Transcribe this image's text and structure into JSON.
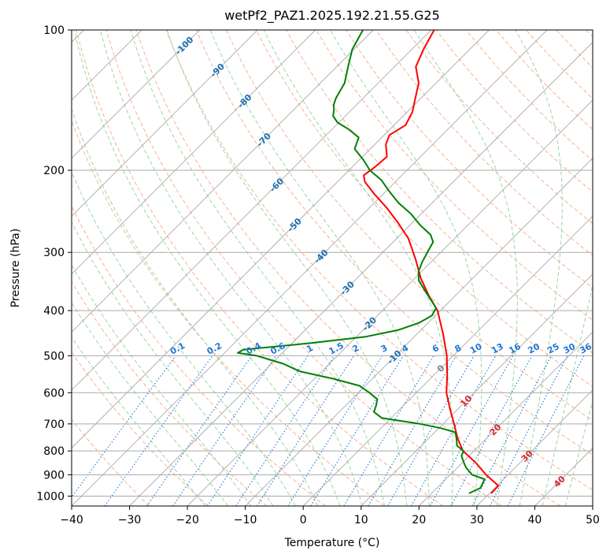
{
  "chart_data": {
    "type": "line",
    "title": "wetPf2_PAZ1.2025.192.21.55.G25",
    "xlabel": "Temperature (°C)",
    "ylabel": "Pressure (hPa)",
    "xlim": [
      -40,
      50
    ],
    "ylim": [
      1050,
      100
    ],
    "y_scale": "log",
    "skew": true,
    "grid": true,
    "x_ticks": [
      -40,
      -30,
      -20,
      -10,
      0,
      10,
      20,
      30,
      40,
      50
    ],
    "y_ticks": [
      100,
      200,
      300,
      400,
      500,
      600,
      700,
      800,
      900,
      1000
    ],
    "series": [
      {
        "color": "#ff0000",
        "points": [
          [
            985,
            30.3
          ],
          [
            950,
            30.2
          ],
          [
            900,
            26.2
          ],
          [
            850,
            22.5
          ],
          [
            800,
            18.1
          ],
          [
            750,
            14.9
          ],
          [
            700,
            11.9
          ],
          [
            650,
            8.6
          ],
          [
            600,
            5.2
          ],
          [
            550,
            2.3
          ],
          [
            500,
            -1.1
          ],
          [
            450,
            -5.4
          ],
          [
            400,
            -10.5
          ],
          [
            370,
            -14.8
          ],
          [
            340,
            -19.1
          ],
          [
            310,
            -23.2
          ],
          [
            280,
            -28.0
          ],
          [
            260,
            -32.3
          ],
          [
            240,
            -37.2
          ],
          [
            225,
            -41.5
          ],
          [
            212,
            -45.2
          ],
          [
            205,
            -46.6
          ],
          [
            197,
            -46.1
          ],
          [
            187,
            -45.8
          ],
          [
            176,
            -48.1
          ],
          [
            168,
            -49.1
          ],
          [
            160,
            -48.0
          ],
          [
            150,
            -49.1
          ],
          [
            140,
            -51.0
          ],
          [
            130,
            -53.0
          ],
          [
            120,
            -56.3
          ],
          [
            110,
            -58.0
          ],
          [
            100,
            -59.5
          ]
        ]
      },
      {
        "color": "#008000",
        "points": [
          [
            985,
            26.5
          ],
          [
            960,
            27.5
          ],
          [
            920,
            26.7
          ],
          [
            900,
            23.8
          ],
          [
            870,
            21.6
          ],
          [
            850,
            20.4
          ],
          [
            820,
            18.7
          ],
          [
            800,
            18.2
          ],
          [
            780,
            16.2
          ],
          [
            750,
            14.7
          ],
          [
            730,
            13.6
          ],
          [
            715,
            10.4
          ],
          [
            700,
            6.0
          ],
          [
            680,
            -1.6
          ],
          [
            660,
            -4.0
          ],
          [
            640,
            -4.7
          ],
          [
            620,
            -5.6
          ],
          [
            600,
            -8.1
          ],
          [
            580,
            -11.0
          ],
          [
            560,
            -16.8
          ],
          [
            540,
            -23.8
          ],
          [
            520,
            -28.0
          ],
          [
            500,
            -33.9
          ],
          [
            493,
            -37.7
          ],
          [
            485,
            -37.3
          ],
          [
            470,
            -27.0
          ],
          [
            455,
            -18.4
          ],
          [
            440,
            -13.9
          ],
          [
            425,
            -11.6
          ],
          [
            410,
            -10.6
          ],
          [
            395,
            -11.2
          ],
          [
            380,
            -13.4
          ],
          [
            360,
            -16.5
          ],
          [
            345,
            -18.9
          ],
          [
            330,
            -20.5
          ],
          [
            315,
            -21.5
          ],
          [
            300,
            -22.3
          ],
          [
            285,
            -23.1
          ],
          [
            275,
            -24.8
          ],
          [
            262,
            -28.3
          ],
          [
            248,
            -31.8
          ],
          [
            235,
            -35.8
          ],
          [
            222,
            -39.4
          ],
          [
            210,
            -42.7
          ],
          [
            200,
            -46.4
          ],
          [
            190,
            -49.3
          ],
          [
            180,
            -52.7
          ],
          [
            170,
            -54.0
          ],
          [
            163,
            -57.3
          ],
          [
            158,
            -60.2
          ],
          [
            153,
            -62.1
          ],
          [
            148,
            -63.1
          ],
          [
            145,
            -63.9
          ],
          [
            140,
            -64.7
          ],
          [
            130,
            -65.8
          ],
          [
            120,
            -68.0
          ],
          [
            110,
            -70.3
          ],
          [
            100,
            -71.8
          ]
        ]
      }
    ],
    "annotations": {
      "isotherm_labels": [
        "-100",
        "-90",
        "-80",
        "-70",
        "-60",
        "-50",
        "-40",
        "-30",
        "-20",
        "-10",
        "0",
        "10",
        "20",
        "30",
        "40"
      ],
      "mixing_ratio_labels": [
        "0.1",
        "0.2",
        "0.4",
        "0.6",
        "1",
        "1.5",
        "2",
        "3",
        "4",
        "6",
        "8",
        "10",
        "13",
        "16",
        "20",
        "25",
        "30",
        "36"
      ]
    }
  },
  "colors": {
    "temperature": "#ff0000",
    "dewpoint": "#008000",
    "isotherm_grid": "#aaaaaa",
    "dry_adiabat": "#f4a582",
    "moist_adiabat": "#8fd19e",
    "mixing_ratio": "#1f77d4",
    "cold_label": "#1f6fb0",
    "warm_label": "#d62728",
    "zero_label": "#7f7f7f"
  }
}
